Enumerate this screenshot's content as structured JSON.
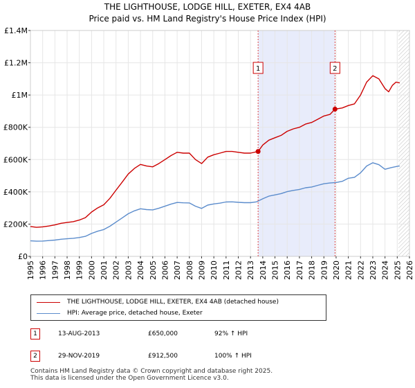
{
  "header": {
    "title": "THE LIGHTHOUSE, LODGE HILL, EXETER, EX4 4AB",
    "subtitle": "Price paid vs. HM Land Registry's House Price Index (HPI)"
  },
  "chart_data": {
    "type": "line",
    "title": "THE LIGHTHOUSE, LODGE HILL, EXETER, EX4 4AB",
    "subtitle": "Price paid vs. HM Land Registry's House Price Index (HPI)",
    "xlabel": "",
    "ylabel": "",
    "xlim": [
      1995,
      2026
    ],
    "ylim": [
      0,
      1400000
    ],
    "x_ticks": [
      "1995",
      "1996",
      "1997",
      "1998",
      "1999",
      "2000",
      "2001",
      "2002",
      "2003",
      "2004",
      "2005",
      "2006",
      "2007",
      "2008",
      "2009",
      "2010",
      "2011",
      "2012",
      "2013",
      "2014",
      "2015",
      "2016",
      "2017",
      "2018",
      "2019",
      "2020",
      "2021",
      "2022",
      "2023",
      "2024",
      "2025",
      "2026"
    ],
    "y_ticks": [
      {
        "value": 0,
        "label": "£0"
      },
      {
        "value": 200000,
        "label": "£200K"
      },
      {
        "value": 400000,
        "label": "£400K"
      },
      {
        "value": 600000,
        "label": "£600K"
      },
      {
        "value": 800000,
        "label": "£800K"
      },
      {
        "value": 1000000,
        "label": "£1M"
      },
      {
        "value": 1200000,
        "label": "£1.2M"
      },
      {
        "value": 1400000,
        "label": "£1.4M"
      }
    ],
    "shaded_regions": [
      {
        "name": "sale-period",
        "from": 2013.62,
        "to": 2019.91,
        "color": "#e8ecfb"
      },
      {
        "name": "future-hatch",
        "from": 2025.1,
        "to": 2026,
        "hatched": true
      }
    ],
    "series": [
      {
        "name": "THE LIGHTHOUSE, LODGE HILL, EXETER, EX4 4AB (detached house)",
        "color": "#cc0000",
        "x": [
          1995.0,
          1995.5,
          1996.0,
          1996.5,
          1997.0,
          1997.5,
          1998.0,
          1998.5,
          1999.0,
          1999.5,
          2000.0,
          2000.5,
          2001.0,
          2001.5,
          2002.0,
          2002.5,
          2003.0,
          2003.5,
          2004.0,
          2004.5,
          2005.0,
          2005.5,
          2006.0,
          2006.5,
          2007.0,
          2007.5,
          2008.0,
          2008.5,
          2009.0,
          2009.5,
          2010.0,
          2010.5,
          2011.0,
          2011.5,
          2012.0,
          2012.5,
          2013.0,
          2013.62,
          2014.0,
          2014.5,
          2015.0,
          2015.5,
          2016.0,
          2016.5,
          2017.0,
          2017.5,
          2018.0,
          2018.5,
          2019.0,
          2019.5,
          2019.91,
          2020.5,
          2021.0,
          2021.5,
          2022.0,
          2022.5,
          2023.0,
          2023.5,
          2024.0,
          2024.3,
          2024.6,
          2024.9,
          2025.2
        ],
        "values": [
          185000,
          180000,
          183000,
          188000,
          195000,
          205000,
          210000,
          215000,
          225000,
          240000,
          275000,
          300000,
          320000,
          360000,
          410000,
          460000,
          510000,
          545000,
          570000,
          560000,
          555000,
          575000,
          600000,
          625000,
          645000,
          640000,
          640000,
          600000,
          575000,
          615000,
          630000,
          640000,
          650000,
          650000,
          645000,
          640000,
          640000,
          650000,
          690000,
          720000,
          735000,
          750000,
          775000,
          790000,
          800000,
          820000,
          830000,
          850000,
          870000,
          880000,
          912500,
          920000,
          935000,
          945000,
          1000000,
          1080000,
          1120000,
          1100000,
          1040000,
          1020000,
          1060000,
          1080000,
          1075000
        ]
      },
      {
        "name": "HPI: Average price, detached house, Exeter",
        "color": "#5b8ccc",
        "x": [
          1995.0,
          1995.5,
          1996.0,
          1996.5,
          1997.0,
          1997.5,
          1998.0,
          1998.5,
          1999.0,
          1999.5,
          2000.0,
          2000.5,
          2001.0,
          2001.5,
          2002.0,
          2002.5,
          2003.0,
          2003.5,
          2004.0,
          2004.5,
          2005.0,
          2005.5,
          2006.0,
          2006.5,
          2007.0,
          2007.5,
          2008.0,
          2008.5,
          2009.0,
          2009.5,
          2010.0,
          2010.5,
          2011.0,
          2011.5,
          2012.0,
          2012.5,
          2013.0,
          2013.5,
          2014.0,
          2014.5,
          2015.0,
          2015.5,
          2016.0,
          2016.5,
          2017.0,
          2017.5,
          2018.0,
          2018.5,
          2019.0,
          2019.5,
          2020.0,
          2020.5,
          2021.0,
          2021.5,
          2022.0,
          2022.5,
          2023.0,
          2023.5,
          2024.0,
          2024.5,
          2025.0,
          2025.2
        ],
        "values": [
          96000,
          94000,
          95000,
          98000,
          101000,
          106000,
          109000,
          112000,
          117000,
          124000,
          142000,
          156000,
          166000,
          187000,
          212000,
          238000,
          264000,
          282000,
          295000,
          290000,
          288000,
          298000,
          311000,
          324000,
          334000,
          332000,
          331000,
          311000,
          297000,
          318000,
          325000,
          330000,
          337000,
          338000,
          335000,
          333000,
          333000,
          338000,
          357000,
          373000,
          381000,
          389000,
          401000,
          409000,
          415000,
          425000,
          430000,
          440000,
          450000,
          455000,
          458000,
          465000,
          484000,
          490000,
          518000,
          560000,
          580000,
          568000,
          540000,
          550000,
          558000,
          560000
        ]
      }
    ],
    "markers": [
      {
        "label": "1",
        "x": 2013.62,
        "value": 650000
      },
      {
        "label": "2",
        "x": 2019.91,
        "value": 912500
      }
    ]
  },
  "legend": {
    "items": [
      {
        "label": "THE LIGHTHOUSE, LODGE HILL, EXETER, EX4 4AB (detached house)",
        "color": "#cc0000"
      },
      {
        "label": "HPI: Average price, detached house, Exeter",
        "color": "#5b8ccc"
      }
    ]
  },
  "sales": [
    {
      "num": "1",
      "date": "13-AUG-2013",
      "price": "£650,000",
      "hpi": "92% ↑ HPI"
    },
    {
      "num": "2",
      "date": "29-NOV-2019",
      "price": "£912,500",
      "hpi": "100% ↑ HPI"
    }
  ],
  "footer": {
    "line1": "Contains HM Land Registry data © Crown copyright and database right 2025.",
    "line2": "This data is licensed under the Open Government Licence v3.0."
  }
}
